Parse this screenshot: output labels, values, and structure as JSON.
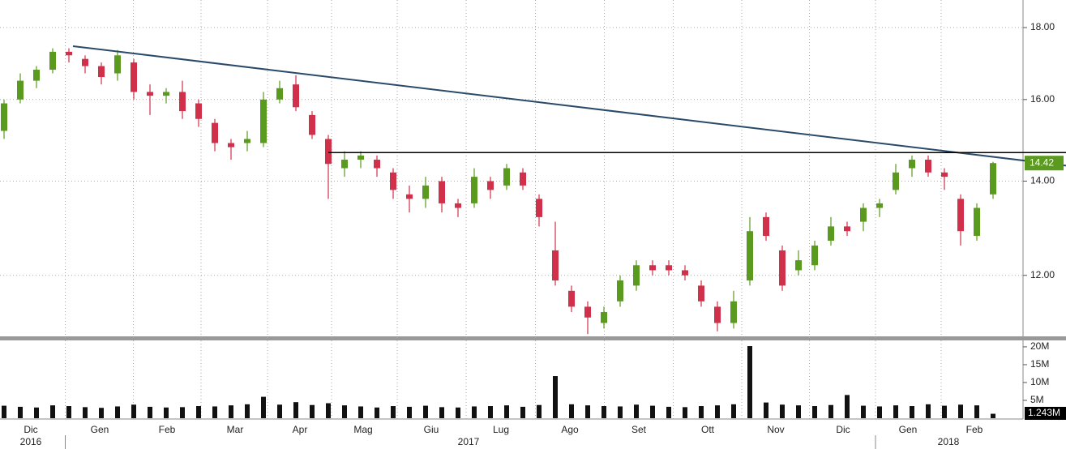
{
  "chart_data": {
    "type": "candlestick",
    "ylim": [
      10.86,
      18.83
    ],
    "log_scale": true,
    "yticks": [
      {
        "value": 12,
        "label": "12.00"
      },
      {
        "value": 14,
        "label": "14.00"
      },
      {
        "value": 16,
        "label": "16.00"
      },
      {
        "value": 18,
        "label": "18.00"
      }
    ],
    "up_color": "#5a9a1e",
    "down_color": "#d0304a",
    "grid": true,
    "open": [
      15.2,
      16.0,
      16.5,
      16.8,
      17.3,
      17.1,
      16.9,
      16.7,
      17.0,
      16.2,
      16.1,
      16.2,
      15.9,
      15.4,
      14.9,
      14.9,
      14.9,
      16.0,
      16.4,
      15.6,
      15.0,
      14.3,
      14.5,
      14.5,
      14.2,
      13.7,
      13.6,
      14.0,
      13.5,
      13.5,
      14.0,
      13.9,
      14.2,
      13.6,
      12.5,
      11.7,
      11.4,
      11.1,
      11.5,
      11.8,
      12.2,
      12.2,
      12.1,
      11.8,
      11.4,
      11.1,
      11.9,
      13.2,
      12.5,
      12.1,
      12.2,
      12.7,
      13.0,
      13.1,
      13.4,
      13.8,
      14.3,
      14.5,
      14.2,
      13.6,
      12.8,
      13.7
    ],
    "high": [
      16.0,
      16.7,
      16.9,
      17.4,
      17.4,
      17.2,
      17.0,
      17.35,
      17.1,
      16.4,
      16.3,
      16.5,
      16.0,
      15.5,
      15.0,
      15.2,
      16.2,
      16.5,
      16.65,
      15.7,
      15.1,
      14.7,
      14.7,
      14.6,
      14.3,
      13.9,
      14.1,
      14.1,
      13.6,
      14.3,
      14.1,
      14.4,
      14.3,
      13.7,
      13.1,
      11.8,
      11.5,
      11.4,
      12.0,
      12.3,
      12.3,
      12.3,
      12.2,
      11.9,
      11.5,
      11.7,
      13.2,
      13.3,
      12.6,
      12.5,
      12.7,
      13.2,
      13.1,
      13.5,
      13.6,
      14.4,
      14.6,
      14.6,
      14.3,
      13.7,
      13.5,
      14.45
    ],
    "low": [
      15.0,
      15.9,
      16.3,
      16.7,
      17.0,
      16.7,
      16.4,
      16.5,
      16.0,
      15.6,
      15.9,
      15.5,
      15.3,
      14.7,
      14.5,
      14.7,
      14.8,
      15.9,
      15.7,
      15.0,
      13.6,
      14.1,
      14.3,
      14.1,
      13.6,
      13.3,
      13.4,
      13.3,
      13.2,
      13.4,
      13.6,
      13.8,
      13.8,
      13.0,
      11.8,
      11.3,
      10.9,
      11.0,
      11.4,
      11.7,
      12.0,
      12.0,
      11.9,
      11.4,
      10.95,
      11.0,
      11.8,
      12.7,
      11.7,
      12.0,
      12.1,
      12.6,
      12.8,
      12.9,
      13.2,
      13.7,
      14.1,
      14.1,
      13.8,
      12.6,
      12.7,
      13.6
    ],
    "close": [
      15.9,
      16.5,
      16.8,
      17.3,
      17.2,
      16.9,
      16.6,
      17.2,
      16.2,
      16.1,
      16.2,
      15.7,
      15.5,
      14.9,
      14.8,
      15.0,
      16.0,
      16.3,
      15.8,
      15.1,
      14.4,
      14.5,
      14.6,
      14.3,
      13.8,
      13.6,
      13.9,
      13.5,
      13.4,
      14.1,
      13.8,
      14.3,
      13.9,
      13.2,
      11.9,
      11.4,
      11.2,
      11.3,
      11.9,
      12.2,
      12.1,
      12.1,
      12.0,
      11.5,
      11.1,
      11.5,
      12.9,
      12.8,
      11.8,
      12.3,
      12.6,
      13.0,
      12.9,
      13.4,
      13.5,
      14.2,
      14.5,
      14.2,
      14.1,
      12.9,
      13.4,
      14.42
    ],
    "volume": [
      3.5,
      3.2,
      3.0,
      3.6,
      3.4,
      3.1,
      2.9,
      3.3,
      3.8,
      3.2,
      3.0,
      3.1,
      3.4,
      3.3,
      3.6,
      3.9,
      6.0,
      3.8,
      4.5,
      3.7,
      4.2,
      3.6,
      3.3,
      3.0,
      3.4,
      3.2,
      3.5,
      3.1,
      3.0,
      3.3,
      3.4,
      3.6,
      3.2,
      3.7,
      11.8,
      3.9,
      3.6,
      3.4,
      3.3,
      3.8,
      3.5,
      3.2,
      3.1,
      3.4,
      3.6,
      3.9,
      20.2,
      4.4,
      3.8,
      3.6,
      3.4,
      3.7,
      6.5,
      3.5,
      3.3,
      3.6,
      3.4,
      3.9,
      3.5,
      3.8,
      3.6,
      1.243
    ],
    "volume_last_label": "1.243M",
    "volume_ylim": [
      0,
      21.8
    ],
    "volume_yticks": [
      {
        "value": 5,
        "label": "5M"
      },
      {
        "value": 10,
        "label": "10M"
      },
      {
        "value": 15,
        "label": "15M"
      },
      {
        "value": 20,
        "label": "20M"
      }
    ],
    "volume_color": "#111111",
    "month_ticks": [
      {
        "value": 1.65,
        "label": "Dic"
      },
      {
        "value": 5.9,
        "label": "Gen"
      },
      {
        "value": 10.05,
        "label": "Feb"
      },
      {
        "value": 14.25,
        "label": "Mar"
      },
      {
        "value": 18.25,
        "label": "Apr"
      },
      {
        "value": 22.15,
        "label": "Mag"
      },
      {
        "value": 26.35,
        "label": "Giu"
      },
      {
        "value": 30.65,
        "label": "Lug"
      },
      {
        "value": 34.9,
        "label": "Ago"
      },
      {
        "value": 39.15,
        "label": "Set"
      },
      {
        "value": 43.4,
        "label": "Ott"
      },
      {
        "value": 47.6,
        "label": "Nov"
      },
      {
        "value": 51.75,
        "label": "Dic"
      },
      {
        "value": 55.75,
        "label": "Gen"
      },
      {
        "value": 59.85,
        "label": "Feb"
      }
    ],
    "year_ticks": [
      {
        "value": 1.65,
        "label": "2016"
      },
      {
        "value": 28.65,
        "label": "2017"
      },
      {
        "value": 58.25,
        "label": "2018"
      }
    ],
    "trendline": {
      "x": [
        4.25,
        65.5
      ],
      "y": [
        17.46,
        14.36
      ],
      "color": "#2a4a6a"
    },
    "resistance": {
      "start": 20,
      "value": 14.67,
      "color": "#000000"
    }
  }
}
